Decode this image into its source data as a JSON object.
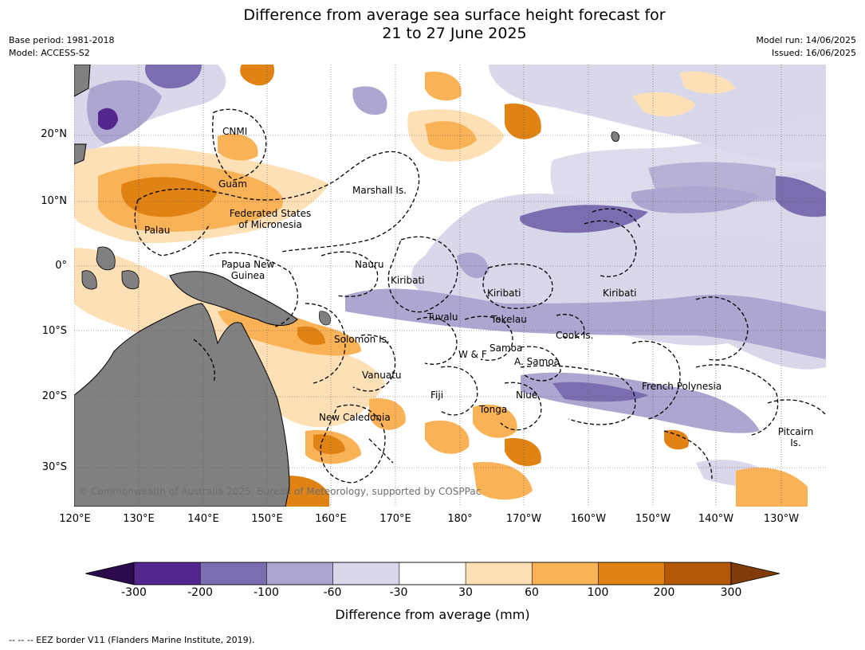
{
  "title": {
    "line1": "Difference from average sea surface height forecast for",
    "line2": "21 to 27 June 2025"
  },
  "meta": {
    "base_period": "Base period: 1981-2018",
    "model": "Model: ACCESS-S2",
    "model_run": "Model run: 14/06/2025",
    "issued": "Issued: 16/06/2025"
  },
  "latitude_labels": [
    "20°N",
    "10°N",
    "0°",
    "10°S",
    "20°S",
    "30°S"
  ],
  "longitude_labels": [
    "120°E",
    "130°E",
    "140°E",
    "150°E",
    "160°E",
    "170°E",
    "180°",
    "170°W",
    "160°W",
    "150°W",
    "140°W",
    "130°W"
  ],
  "places": {
    "cnmi": "CNMI",
    "guam": "Guam",
    "marshall": "Marshall Is.",
    "fsm_1": "Federated States",
    "fsm_2": "of Micronesia",
    "palau": "Palau",
    "png_1": "Papua New",
    "png_2": "Guinea",
    "nauru": "Nauru",
    "kiribati_w": "Kiribati",
    "kiribati_c": "Kiribati",
    "kiribati_e": "Kiribati",
    "tuvalu": "Tuvalu",
    "tokelau": "Tokelau",
    "cook": "Cook Is.",
    "solomon": "Solomon Is.",
    "wf": "W & F",
    "samoa": "Samoa",
    "asamoa": "A. Samoa",
    "vanuatu": "Vanuatu",
    "fiji": "Fiji",
    "niue": "Niue",
    "tonga": "Tonga",
    "frpoly": "French Polynesia",
    "newcal": "New Caledonia",
    "pitcairn_1": "Pitcairn",
    "pitcairn_2": "Is."
  },
  "copyright": "© Commonwealth of Australia 2025, Bureau of Meteorology, supported by COSPPac",
  "colorbar": {
    "label": "Difference from average (mm)",
    "ticks": [
      "-300",
      "-200",
      "-100",
      "-60",
      "-30",
      "30",
      "60",
      "100",
      "200",
      "300"
    ],
    "colors": [
      "#2d0a4e",
      "#54278f",
      "#7b6daf",
      "#ada6d0",
      "#d9d8ea",
      "#ffffff",
      "#fee0b6",
      "#f9b256",
      "#e08214",
      "#b35806",
      "#7f3b08"
    ]
  },
  "eez_note": "--  --  -- EEZ border V11 (Flanders Marine Institute, 2019)."
}
